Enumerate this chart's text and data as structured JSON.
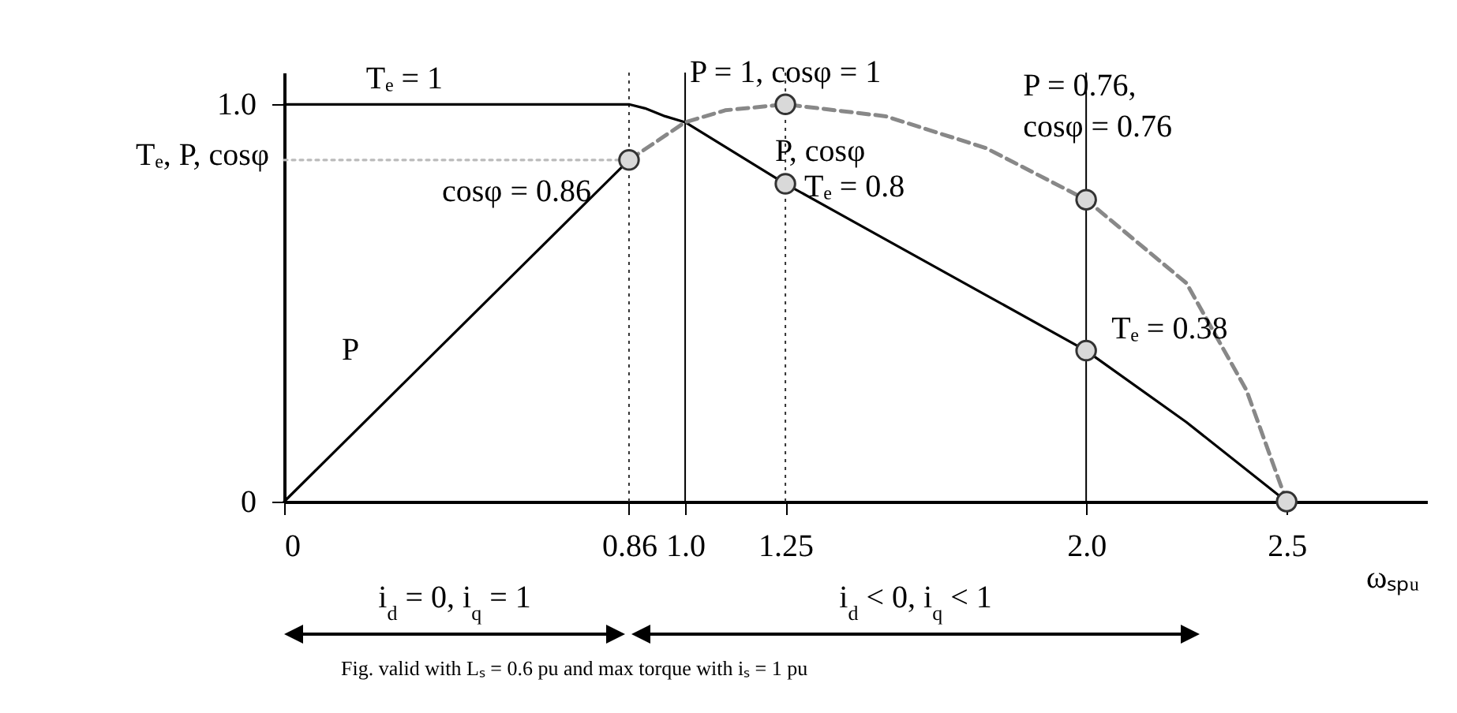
{
  "chart_data": {
    "type": "line",
    "xlabel": "ωₛₚᵤ",
    "ylabel": "Tₑ, P, cosφ",
    "xlim": [
      0,
      2.85
    ],
    "ylim": [
      0,
      1.08
    ],
    "xticks": [
      0,
      0.86,
      {
        "value": 1,
        "label": "1.0"
      },
      1.25,
      {
        "value": 2,
        "label": "2.0"
      },
      2.5
    ],
    "yticks": [
      0,
      {
        "value": 1,
        "label": "1.0"
      }
    ],
    "series": [
      {
        "color": "#000000",
        "line_style": "solid",
        "x": [
          0,
          0.86,
          0.9,
          0.95,
          1.0,
          1.25,
          1.5,
          1.75,
          2.0,
          2.25,
          2.5
        ],
        "values": [
          1,
          1,
          0.99,
          0.97,
          0.955,
          0.8,
          0.66,
          0.52,
          0.38,
          0.2,
          0
        ]
      },
      {
        "name": "P",
        "color": "#000000",
        "line_style": "solid",
        "x": [
          0,
          0.86
        ],
        "values": [
          0,
          0.86
        ]
      },
      {
        "color": "#bbbbbb",
        "line_style": "dotted",
        "x": [
          0,
          0.86
        ],
        "values": [
          0.86,
          0.86
        ]
      },
      {
        "name": "P, cosφ",
        "color": "#888888",
        "line_style": "dashed",
        "x": [
          0.86,
          1.0,
          1.1,
          1.25,
          1.5,
          1.75,
          2.0,
          2.25,
          2.4,
          2.5
        ],
        "values": [
          0.86,
          0.955,
          0.985,
          1,
          0.97,
          0.89,
          0.76,
          0.55,
          0.28,
          0
        ]
      },
      {
        "type": "scatter",
        "color": "#d9d9d9",
        "marker": "circle",
        "x": [
          0.86,
          1.25,
          1.25,
          2.0,
          2.0,
          2.5
        ],
        "values": [
          0.86,
          1,
          0.8,
          0.76,
          0.38,
          0
        ]
      }
    ],
    "ref_lines": [
      {
        "axis": "x",
        "value": 0.86,
        "color": "#333333",
        "line_style": "dotted"
      },
      {
        "axis": "x",
        "value": 1.0,
        "color": "#000000",
        "line_style": "solid"
      },
      {
        "axis": "x",
        "value": 1.25,
        "color": "#333333",
        "line_style": "dotted"
      },
      {
        "axis": "x",
        "value": 2.0,
        "color": "#000000",
        "line_style": "solid"
      }
    ],
    "annotations": [
      {
        "text": "Tₑ = 1",
        "x": 0.3,
        "y": 1
      },
      {
        "text": "cosφ = 0.86",
        "x": 0.86,
        "y": 0.86
      },
      {
        "text": "P = 1, cosφ = 1",
        "x": 1.25,
        "y": 1
      },
      {
        "text": "Tₑ = 0.8",
        "x": 1.25,
        "y": 0.8
      },
      {
        "text": "P = 0.76,\ncosφ = 0.76",
        "x": 2.0,
        "y": 0.76
      },
      {
        "text": "Tₑ = 0.38",
        "x": 2.0,
        "y": 0.38
      },
      "i$_{d}$ = 0, i$_{q}$ = 1",
      "i$_{d}$ < 0, i$_{q}$ < 1",
      "Fig. valid with Lₛ = 0.6 pu and max torque with iₛ = 1 pu"
    ],
    "grid": false
  }
}
